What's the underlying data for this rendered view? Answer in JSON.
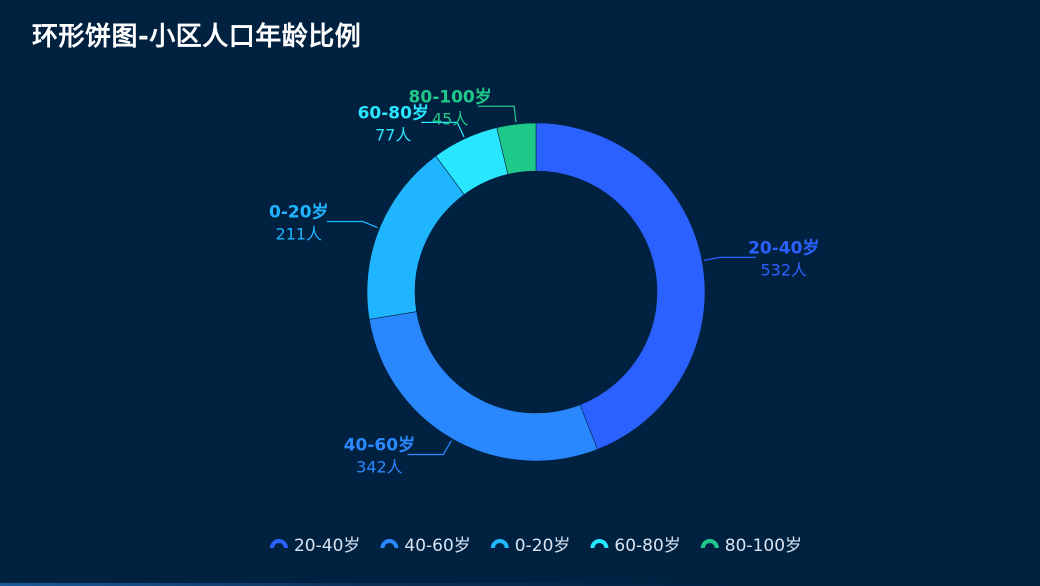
{
  "title": "环形饼图-小区人口年龄比例",
  "chart_data": {
    "type": "pie",
    "variant": "donut",
    "title": "环形饼图-小区人口年龄比例",
    "unit": "人",
    "legend_position": "bottom-center",
    "slices": [
      {
        "name": "20-40岁",
        "value": 532,
        "color": "#2b62ff"
      },
      {
        "name": "40-60岁",
        "value": 342,
        "color": "#2a88ff"
      },
      {
        "name": "0-20岁",
        "value": 211,
        "color": "#1fb6ff"
      },
      {
        "name": "60-80岁",
        "value": 77,
        "color": "#29e6ff"
      },
      {
        "name": "80-100岁",
        "value": 45,
        "color": "#1ec98a"
      }
    ]
  }
}
